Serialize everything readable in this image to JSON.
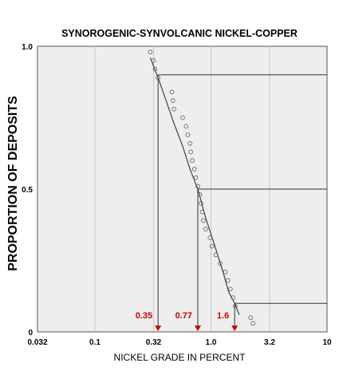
{
  "chart_data": {
    "type": "scatter",
    "title": "SYNOROGENIC-SYNVOLCANIC NICKEL-COPPER",
    "xlabel": "NICKEL GRADE IN PERCENT",
    "ylabel": "PROPORTION OF DEPOSITS",
    "x_scale": "log",
    "xlim": [
      0.032,
      10
    ],
    "ylim": [
      0,
      1
    ],
    "x_ticks": [
      0.032,
      0.1,
      0.32,
      1.0,
      3.2,
      10
    ],
    "x_tick_labels": [
      "0.032",
      "0.1",
      "0.32",
      "1.0",
      "3.2",
      "10"
    ],
    "y_ticks": [
      0,
      0.5,
      1
    ],
    "y_tick_labels": [
      "0",
      "0.5",
      "1.0"
    ],
    "grid": true,
    "colors": {
      "plot_background": "#eeeeee",
      "grid": "#bbbbbb",
      "curve": "#333333",
      "points": "#666666",
      "markers": "#cc0000",
      "text": "#000000"
    },
    "series": [
      {
        "kind": "points",
        "points": [
          [
            0.3,
            0.98
          ],
          [
            0.32,
            0.95
          ],
          [
            0.33,
            0.92
          ],
          [
            0.35,
            0.89
          ],
          [
            0.46,
            0.84
          ],
          [
            0.47,
            0.81
          ],
          [
            0.48,
            0.78
          ],
          [
            0.57,
            0.75
          ],
          [
            0.61,
            0.72
          ],
          [
            0.63,
            0.69
          ],
          [
            0.66,
            0.66
          ],
          [
            0.67,
            0.63
          ],
          [
            0.69,
            0.6
          ],
          [
            0.72,
            0.57
          ],
          [
            0.74,
            0.54
          ],
          [
            0.77,
            0.51
          ],
          [
            0.8,
            0.48
          ],
          [
            0.82,
            0.45
          ],
          [
            0.84,
            0.42
          ],
          [
            0.86,
            0.39
          ],
          [
            0.9,
            0.36
          ],
          [
            0.98,
            0.33
          ],
          [
            1.02,
            0.3
          ],
          [
            1.1,
            0.27
          ],
          [
            1.2,
            0.24
          ],
          [
            1.33,
            0.21
          ],
          [
            1.4,
            0.18
          ],
          [
            1.47,
            0.15
          ],
          [
            1.55,
            0.12
          ],
          [
            1.62,
            0.09
          ],
          [
            2.2,
            0.05
          ],
          [
            2.3,
            0.03
          ]
        ]
      },
      {
        "kind": "curve",
        "points": [
          [
            0.3,
            0.96
          ],
          [
            0.35,
            0.89
          ],
          [
            0.41,
            0.81
          ],
          [
            0.48,
            0.73
          ],
          [
            0.57,
            0.65
          ],
          [
            0.66,
            0.57
          ],
          [
            0.77,
            0.5
          ],
          [
            0.9,
            0.4
          ],
          [
            1.08,
            0.3
          ],
          [
            1.27,
            0.21
          ],
          [
            1.42,
            0.14
          ],
          [
            1.6,
            0.1
          ],
          [
            1.75,
            0.06
          ]
        ]
      }
    ],
    "guides": [
      {
        "y": 0.9,
        "x": 0.35
      },
      {
        "y": 0.5,
        "x": 0.77
      },
      {
        "y": 0.1,
        "x": 1.6
      }
    ],
    "annotations": [
      {
        "text": "0.35",
        "x": 0.35
      },
      {
        "text": "0.77",
        "x": 0.77
      },
      {
        "text": "1.6",
        "x": 1.6
      }
    ]
  }
}
